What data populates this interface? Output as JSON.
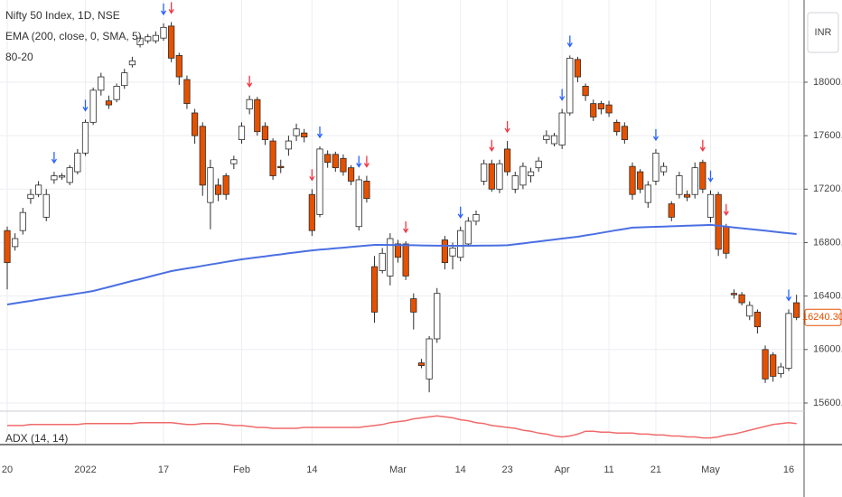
{
  "chart_data": {
    "type": "candlestick",
    "title": "Nifty 50 Index, 1D, NSE",
    "currency": "INR",
    "study_label": "80-20",
    "categories": [
      "20",
      null,
      null,
      null,
      null,
      null,
      null,
      null,
      null,
      null,
      "2022",
      null,
      null,
      null,
      null,
      null,
      null,
      null,
      null,
      null,
      "17",
      null,
      null,
      null,
      null,
      null,
      null,
      null,
      null,
      null,
      "Feb",
      null,
      null,
      null,
      null,
      null,
      null,
      null,
      null,
      "14",
      null,
      null,
      null,
      null,
      null,
      null,
      null,
      null,
      null,
      null,
      "Mar",
      null,
      null,
      null,
      null,
      null,
      null,
      null,
      "14",
      null,
      null,
      null,
      null,
      null,
      "23",
      null,
      null,
      null,
      null,
      null,
      null,
      "Apr",
      null,
      null,
      null,
      null,
      null,
      "11",
      null,
      null,
      null,
      null,
      null,
      "21",
      null,
      null,
      null,
      null,
      null,
      null,
      "May",
      null,
      null,
      null,
      null,
      null,
      null,
      null,
      null,
      null,
      "16",
      null
    ],
    "open": [
      16890,
      16770,
      16890,
      17130,
      17160,
      16990,
      17270,
      17290,
      17250,
      17330,
      17470,
      17700,
      17940,
      17860,
      17870,
      17975,
      18130,
      18280,
      18310,
      18310,
      18330,
      18420,
      18200,
      18020,
      17770,
      17670,
      17100,
      17230,
      17300,
      17390,
      17570,
      17800,
      17870,
      17670,
      17560,
      17370,
      17500,
      17600,
      17620,
      17160,
      17010,
      17460,
      17460,
      17430,
      17360,
      16920,
      17260,
      16620,
      16590,
      16550,
      16790,
      16790,
      16380,
      15900,
      15780,
      16080,
      16820,
      16700,
      16690,
      16790,
      16960,
      17260,
      17390,
      17200,
      17500,
      17200,
      17230,
      17300,
      17360,
      17570,
      17540,
      17530,
      17770,
      18170,
      17970,
      17840,
      17840,
      17830,
      17700,
      17670,
      17370,
      17330,
      17100,
      17260,
      17330,
      17090,
      17160,
      17160,
      17160,
      17400,
      16990,
      17160,
      16920,
      16420,
      16410,
      16250,
      16280,
      16000,
      15960,
      15820,
      15860,
      16350
    ],
    "high": [
      16920,
      16870,
      17060,
      17200,
      17260,
      17200,
      17330,
      17320,
      17380,
      17500,
      17720,
      17960,
      18070,
      17900,
      17990,
      18100,
      18190,
      18350,
      18360,
      18380,
      18440,
      18450,
      18220,
      18050,
      17800,
      17700,
      17420,
      17280,
      17320,
      17450,
      17700,
      17900,
      17890,
      17700,
      17580,
      17420,
      17600,
      17690,
      17650,
      17200,
      17520,
      17490,
      17480,
      17460,
      17380,
      17300,
      17300,
      16700,
      16760,
      16870,
      16820,
      16810,
      16420,
      15930,
      16100,
      16460,
      16850,
      16800,
      16920,
      16990,
      17040,
      17420,
      17420,
      17420,
      17560,
      17330,
      17400,
      17360,
      17440,
      17640,
      17620,
      17800,
      18200,
      18190,
      17990,
      17870,
      17860,
      17860,
      17720,
      17700,
      17400,
      17350,
      17260,
      17500,
      17400,
      17110,
      17330,
      17190,
      17400,
      17420,
      17190,
      17180,
      16940,
      16450,
      16430,
      16360,
      16300,
      16030,
      15980,
      15900,
      16300,
      16410
    ],
    "low": [
      16450,
      16740,
      16860,
      17090,
      17140,
      16960,
      17240,
      17270,
      17230,
      17310,
      17450,
      17680,
      17900,
      17800,
      17850,
      17950,
      18110,
      18260,
      18290,
      18290,
      18310,
      18150,
      17980,
      17800,
      17540,
      17150,
      16900,
      17110,
      17120,
      17350,
      17540,
      17760,
      17600,
      17530,
      17270,
      17320,
      17450,
      17560,
      17550,
      16850,
      16990,
      17360,
      17330,
      17300,
      17230,
      16890,
      17100,
      16200,
      16570,
      16480,
      16650,
      16520,
      16150,
      15860,
      15680,
      16050,
      16600,
      16600,
      16660,
      16770,
      16930,
      17230,
      17180,
      17170,
      17300,
      17170,
      17200,
      17250,
      17330,
      17540,
      17520,
      17500,
      17750,
      18000,
      17860,
      17710,
      17760,
      17740,
      17600,
      17540,
      17120,
      17170,
      17060,
      17230,
      17300,
      16960,
      17130,
      17110,
      17130,
      17170,
      16950,
      16700,
      16680,
      16380,
      16330,
      16220,
      16120,
      15750,
      15760,
      15790,
      15840,
      16220
    ],
    "close": [
      16650,
      16830,
      17025,
      17160,
      17230,
      17160,
      17300,
      17300,
      17360,
      17470,
      17700,
      17940,
      18040,
      17830,
      17970,
      18070,
      18160,
      18330,
      18340,
      18350,
      18410,
      18180,
      18040,
      17840,
      17600,
      17230,
      17360,
      17160,
      17160,
      17420,
      17670,
      17870,
      17630,
      17570,
      17300,
      17360,
      17560,
      17650,
      17590,
      16890,
      17500,
      17400,
      17360,
      17330,
      17260,
      17270,
      17130,
      16280,
      16720,
      16830,
      16690,
      16550,
      16280,
      15880,
      16080,
      16420,
      16650,
      16760,
      16890,
      16960,
      17010,
      17390,
      17200,
      17390,
      17330,
      17300,
      17370,
      17330,
      17410,
      17600,
      17600,
      17770,
      18180,
      18040,
      17900,
      17740,
      17800,
      17770,
      17630,
      17570,
      17160,
      17200,
      17230,
      17470,
      17370,
      16990,
      17300,
      17140,
      17360,
      17200,
      17160,
      16750,
      16720,
      16410,
      16350,
      16330,
      16170,
      15780,
      15800,
      15870,
      16270,
      16240
    ],
    "up_color": "#ffffff",
    "down_color": "#e65100",
    "outline_color": "#2b2b2b",
    "signals": {
      "blue": {
        "color": "#2962ff",
        "indices": [
          6,
          10,
          20,
          40,
          45,
          58,
          71,
          72,
          83,
          90,
          100
        ]
      },
      "red": {
        "color": "#f23645",
        "indices": [
          21,
          31,
          39,
          46,
          51,
          62,
          64,
          89,
          92
        ]
      }
    },
    "overlay": {
      "name": "EMA (200, close, 0, SMA, 5)",
      "color": "#4a6fe3",
      "values": [
        16337,
        16346,
        16355,
        16364,
        16374,
        16383,
        16392,
        16401,
        16410,
        16419,
        16428,
        16438,
        16453,
        16468,
        16483,
        16498,
        16513,
        16527,
        16542,
        16557,
        16572,
        16587,
        16597,
        16607,
        16616,
        16626,
        16636,
        16646,
        16656,
        16665,
        16675,
        16682,
        16690,
        16697,
        16705,
        16712,
        16720,
        16727,
        16735,
        16742,
        16747,
        16752,
        16757,
        16762,
        16768,
        16773,
        16778,
        16783,
        16783,
        16782,
        16781,
        16780,
        16780,
        16779,
        16778,
        16777,
        16777,
        16776,
        16776,
        16777,
        16777,
        16778,
        16778,
        16779,
        16780,
        16787,
        16794,
        16801,
        16808,
        16816,
        16823,
        16830,
        16837,
        16844,
        16854,
        16863,
        16873,
        16883,
        16893,
        16902,
        16912,
        16914,
        16916,
        16918,
        16920,
        16922,
        16924,
        16926,
        16928,
        16930,
        16932,
        16926,
        16920,
        16913,
        16907,
        16901,
        16895,
        16889,
        16883,
        16876,
        16870,
        16864
      ]
    },
    "ylim": [
      15539,
      18615
    ],
    "yticks": [
      {
        "value": 15600,
        "label": "15600.00"
      },
      {
        "value": 16000,
        "label": "16000.00"
      },
      {
        "value": 16400,
        "label": "16400.00"
      },
      {
        "value": 16800,
        "label": "16800.00"
      },
      {
        "value": 17200,
        "label": "17200.00"
      },
      {
        "value": 17600,
        "label": "17600.00"
      },
      {
        "value": 18000,
        "label": "18000.00"
      }
    ],
    "last_price": {
      "value": 16240.3,
      "label": "16240.30"
    },
    "grid": true,
    "indicator": {
      "name": "ADX (14, 14)",
      "color": "#f06a6a",
      "ylim": [
        10,
        45
      ],
      "values": [
        30,
        30,
        30,
        31,
        31,
        31,
        31,
        31,
        31,
        31,
        32,
        32,
        32,
        32,
        32,
        32,
        32,
        33,
        33,
        33,
        33,
        33,
        32,
        31,
        31,
        32,
        32,
        32,
        31,
        30,
        30,
        29,
        28,
        28,
        27,
        27,
        27,
        27,
        28,
        28,
        28,
        28,
        28,
        28,
        28,
        28,
        29,
        30,
        31,
        33,
        34,
        35,
        37,
        38,
        39,
        40,
        39,
        38,
        36,
        35,
        33,
        32,
        30,
        29,
        28,
        27,
        25,
        24,
        22,
        21,
        19,
        18,
        19,
        21,
        24,
        24,
        23,
        23,
        22,
        22,
        22,
        21,
        21,
        20,
        20,
        19,
        19,
        18,
        18,
        17,
        17,
        18,
        20,
        21,
        23,
        25,
        27,
        29,
        31,
        32,
        33,
        32
      ]
    }
  }
}
